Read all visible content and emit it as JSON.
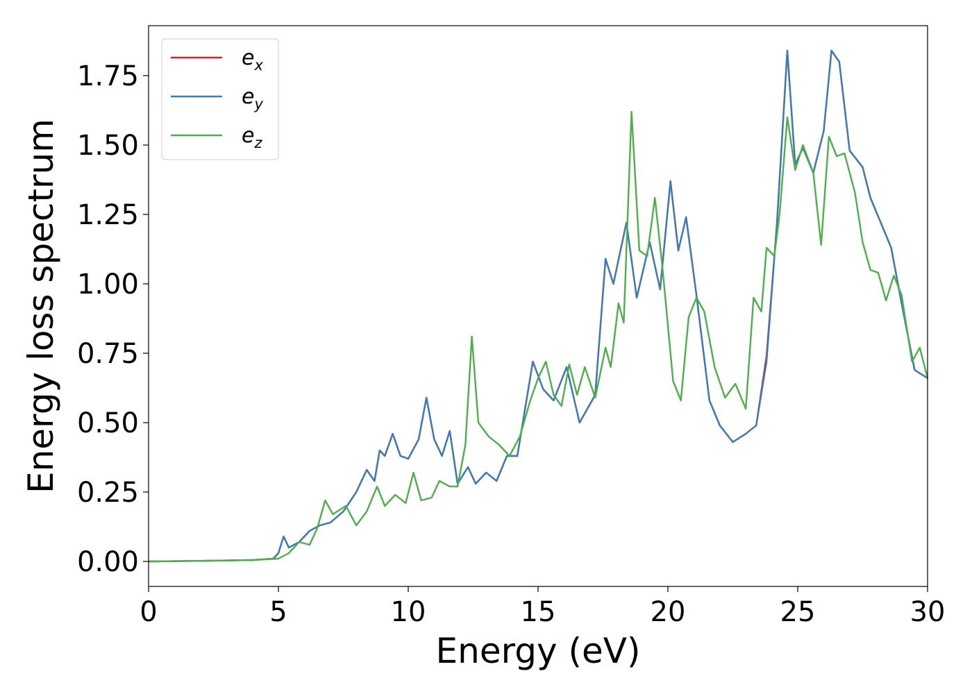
{
  "chart_data": {
    "type": "line",
    "xlabel": "Energy (eV)",
    "ylabel": "Energy loss spectrum",
    "xlim": [
      0,
      30
    ],
    "ylim": [
      -0.09,
      1.93
    ],
    "xticks": [
      0,
      5,
      10,
      15,
      20,
      25,
      30
    ],
    "xtick_labels": [
      "0",
      "5",
      "10",
      "15",
      "20",
      "25",
      "30"
    ],
    "yticks": [
      0,
      0.25,
      0.5,
      0.75,
      1.0,
      1.25,
      1.5,
      1.75
    ],
    "ytick_labels": [
      "0.00",
      "0.25",
      "0.50",
      "0.75",
      "1.00",
      "1.25",
      "1.50",
      "1.75"
    ],
    "grid": false,
    "legend_position": "top-left",
    "series": [
      {
        "name": "e_x",
        "legend_base": "e",
        "legend_sub": "x",
        "color": "#e41a1c",
        "x": [
          0,
          2,
          4,
          4.8,
          5.0,
          5.2,
          5.4,
          5.8,
          6.2,
          6.6,
          7.0,
          7.5,
          8.0,
          8.4,
          8.7,
          8.9,
          9.1,
          9.4,
          9.7,
          10.0,
          10.4,
          10.7,
          11.0,
          11.3,
          11.6,
          11.9,
          12.3,
          12.6,
          13.0,
          13.4,
          13.8,
          14.2,
          14.5,
          14.8,
          15.2,
          15.6,
          16.1,
          16.6,
          17.2,
          17.6,
          17.9,
          18.4,
          18.8,
          19.3,
          19.7,
          20.1,
          20.4,
          20.7,
          21.1,
          21.6,
          22.0,
          22.5,
          23.0,
          23.4,
          23.8,
          24.2,
          24.6,
          24.9,
          25.2,
          25.6,
          26.0,
          26.3,
          26.6,
          27.0,
          27.5,
          27.8,
          28.2,
          28.6,
          29.0,
          29.5,
          30.0
        ],
        "y": [
          0,
          0.002,
          0.005,
          0.01,
          0.03,
          0.09,
          0.05,
          0.07,
          0.11,
          0.13,
          0.14,
          0.18,
          0.25,
          0.33,
          0.29,
          0.4,
          0.38,
          0.46,
          0.38,
          0.37,
          0.44,
          0.59,
          0.44,
          0.38,
          0.47,
          0.28,
          0.34,
          0.28,
          0.32,
          0.29,
          0.38,
          0.38,
          0.55,
          0.72,
          0.62,
          0.58,
          0.7,
          0.5,
          0.6,
          1.09,
          1.0,
          1.22,
          0.95,
          1.15,
          0.98,
          1.37,
          1.12,
          1.24,
          0.96,
          0.58,
          0.49,
          0.43,
          0.46,
          0.49,
          0.74,
          1.22,
          1.84,
          1.43,
          1.49,
          1.4,
          1.55,
          1.84,
          1.8,
          1.48,
          1.42,
          1.31,
          1.22,
          1.13,
          0.93,
          0.69,
          0.66
        ]
      },
      {
        "name": "e_y",
        "legend_base": "e",
        "legend_sub": "y",
        "color": "#377eb8",
        "x": [
          0,
          2,
          4,
          4.8,
          5.0,
          5.2,
          5.4,
          5.8,
          6.2,
          6.6,
          7.0,
          7.5,
          8.0,
          8.4,
          8.7,
          8.9,
          9.1,
          9.4,
          9.7,
          10.0,
          10.4,
          10.7,
          11.0,
          11.3,
          11.6,
          11.9,
          12.3,
          12.6,
          13.0,
          13.4,
          13.8,
          14.2,
          14.5,
          14.8,
          15.2,
          15.6,
          16.1,
          16.6,
          17.2,
          17.6,
          17.9,
          18.4,
          18.8,
          19.3,
          19.7,
          20.1,
          20.4,
          20.7,
          21.1,
          21.6,
          22.0,
          22.5,
          23.0,
          23.4,
          23.8,
          24.2,
          24.6,
          24.9,
          25.2,
          25.6,
          26.0,
          26.3,
          26.6,
          27.0,
          27.5,
          27.8,
          28.2,
          28.6,
          29.0,
          29.5,
          30.0
        ],
        "y": [
          0,
          0.002,
          0.005,
          0.01,
          0.03,
          0.09,
          0.05,
          0.07,
          0.11,
          0.13,
          0.14,
          0.18,
          0.25,
          0.33,
          0.29,
          0.4,
          0.38,
          0.46,
          0.38,
          0.37,
          0.44,
          0.59,
          0.44,
          0.38,
          0.47,
          0.28,
          0.34,
          0.28,
          0.32,
          0.29,
          0.38,
          0.38,
          0.55,
          0.72,
          0.62,
          0.58,
          0.7,
          0.5,
          0.6,
          1.09,
          1.0,
          1.22,
          0.95,
          1.15,
          0.98,
          1.37,
          1.12,
          1.24,
          0.96,
          0.58,
          0.49,
          0.43,
          0.46,
          0.49,
          0.72,
          1.22,
          1.84,
          1.43,
          1.49,
          1.4,
          1.55,
          1.84,
          1.8,
          1.48,
          1.42,
          1.31,
          1.22,
          1.13,
          0.93,
          0.69,
          0.66
        ]
      },
      {
        "name": "e_z",
        "legend_base": "e",
        "legend_sub": "z",
        "color": "#4daf4a",
        "x": [
          0,
          2,
          4,
          5.0,
          5.4,
          5.8,
          6.2,
          6.5,
          6.8,
          7.1,
          7.6,
          8.0,
          8.4,
          8.8,
          9.1,
          9.5,
          9.9,
          10.2,
          10.5,
          10.9,
          11.2,
          11.6,
          11.9,
          12.2,
          12.45,
          12.7,
          13.1,
          13.5,
          13.9,
          14.3,
          14.7,
          15.0,
          15.3,
          15.6,
          15.9,
          16.2,
          16.5,
          16.8,
          17.2,
          17.6,
          17.8,
          18.1,
          18.3,
          18.6,
          18.9,
          19.2,
          19.5,
          19.8,
          20.2,
          20.5,
          20.8,
          21.1,
          21.4,
          21.8,
          22.2,
          22.6,
          23.0,
          23.3,
          23.6,
          23.8,
          24.1,
          24.3,
          24.6,
          24.9,
          25.2,
          25.6,
          25.9,
          26.2,
          26.5,
          26.8,
          27.2,
          27.5,
          27.8,
          28.1,
          28.4,
          28.7,
          29.0,
          29.4,
          29.7,
          30.0
        ],
        "y": [
          0,
          0.002,
          0.005,
          0.01,
          0.03,
          0.07,
          0.06,
          0.12,
          0.22,
          0.17,
          0.2,
          0.13,
          0.18,
          0.27,
          0.2,
          0.24,
          0.21,
          0.32,
          0.22,
          0.23,
          0.29,
          0.27,
          0.27,
          0.42,
          0.81,
          0.5,
          0.45,
          0.42,
          0.38,
          0.45,
          0.58,
          0.66,
          0.72,
          0.6,
          0.56,
          0.71,
          0.6,
          0.7,
          0.59,
          0.77,
          0.7,
          0.93,
          0.86,
          1.62,
          1.12,
          1.1,
          1.31,
          1.05,
          0.65,
          0.58,
          0.88,
          0.95,
          0.9,
          0.7,
          0.59,
          0.64,
          0.55,
          0.95,
          0.9,
          1.13,
          1.1,
          1.25,
          1.6,
          1.41,
          1.5,
          1.4,
          1.14,
          1.53,
          1.46,
          1.47,
          1.33,
          1.15,
          1.05,
          1.04,
          0.94,
          1.03,
          0.96,
          0.72,
          0.77,
          0.66
        ]
      }
    ]
  }
}
